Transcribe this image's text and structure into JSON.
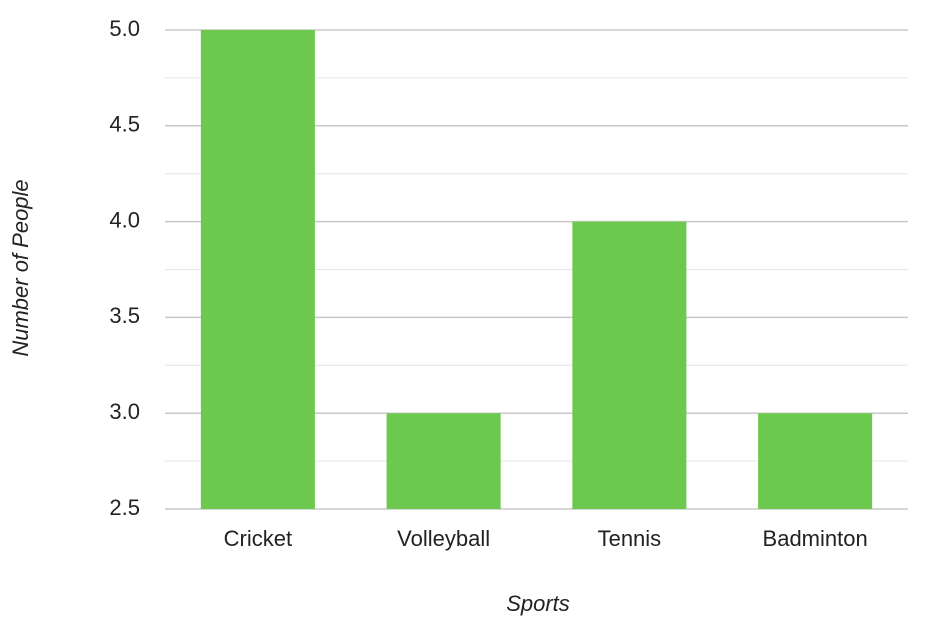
{
  "chart_data": {
    "type": "bar",
    "x_label": "Sports",
    "y_label": "Number of People",
    "categories": [
      "Cricket",
      "Volleyball",
      "Tennis",
      "Badminton"
    ],
    "values": [
      5,
      3,
      4,
      3
    ],
    "color": "#6cc94e",
    "ylim": [
      2.5,
      5
    ],
    "yticks": [
      2.5,
      {
        "value": 3,
        "label": "3.0"
      },
      3.5,
      {
        "value": 4,
        "label": "4.0"
      },
      4.5,
      {
        "value": 5,
        "label": "5.0"
      }
    ],
    "grid": true,
    "minor_grid": true
  }
}
